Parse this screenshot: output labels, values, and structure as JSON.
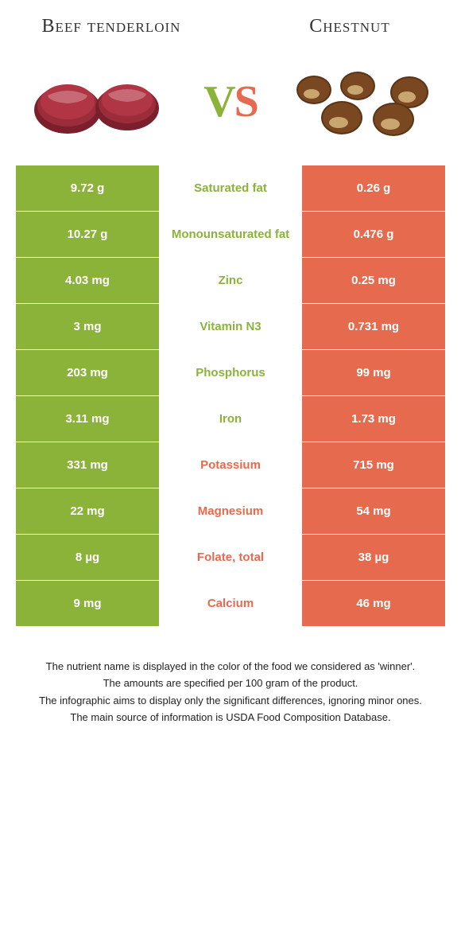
{
  "header": {
    "left_title": "Beef tenderloin",
    "right_title": "Chestnut",
    "vs_v": "V",
    "vs_s": "S"
  },
  "colors": {
    "green": "#8bb33a",
    "orange": "#e66a4d",
    "text": "#333333",
    "bg": "#ffffff"
  },
  "rows": [
    {
      "left": "9.72 g",
      "label": "Saturated fat",
      "right": "0.26 g",
      "winner": "green"
    },
    {
      "left": "10.27 g",
      "label": "Monounsaturated fat",
      "right": "0.476 g",
      "winner": "green"
    },
    {
      "left": "4.03 mg",
      "label": "Zinc",
      "right": "0.25 mg",
      "winner": "green"
    },
    {
      "left": "3 mg",
      "label": "Vitamin N3",
      "right": "0.731 mg",
      "winner": "green"
    },
    {
      "left": "203 mg",
      "label": "Phosphorus",
      "right": "99 mg",
      "winner": "green"
    },
    {
      "left": "3.11 mg",
      "label": "Iron",
      "right": "1.73 mg",
      "winner": "green"
    },
    {
      "left": "331 mg",
      "label": "Potassium",
      "right": "715 mg",
      "winner": "orange"
    },
    {
      "left": "22 mg",
      "label": "Magnesium",
      "right": "54 mg",
      "winner": "orange"
    },
    {
      "left": "8 µg",
      "label": "Folate, total",
      "right": "38 µg",
      "winner": "orange"
    },
    {
      "left": "9 mg",
      "label": "Calcium",
      "right": "46 mg",
      "winner": "orange"
    }
  ],
  "footer": {
    "line1": "The nutrient name is displayed in the color of the food we considered as 'winner'.",
    "line2": "The amounts are specified per 100 gram of the product.",
    "line3": "The infographic aims to display only the significant differences, ignoring minor ones.",
    "line4": "The main source of information is USDA Food Composition Database."
  }
}
